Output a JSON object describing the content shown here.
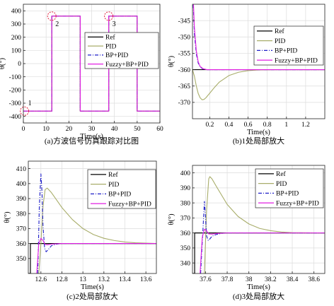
{
  "chart_data": [
    {
      "type": "line",
      "caption": "(a)方波信号仿真跟踪对比图",
      "xlabel": "Time(s)",
      "ylabel": "θ(°)",
      "xlim": [
        0,
        60
      ],
      "ylim": [
        -450,
        450
      ],
      "xticks": [
        0,
        10,
        20,
        30,
        40,
        50,
        60
      ],
      "yticks": [
        -400,
        -300,
        -200,
        -100,
        0,
        100,
        200,
        300,
        400
      ],
      "grid": true,
      "legend": "center-right",
      "annotations": [
        {
          "text": "1",
          "x": 0.5,
          "y": -360
        },
        {
          "text": "2",
          "x": 12.5,
          "y": 360
        },
        {
          "text": "3",
          "x": 37.5,
          "y": 360
        }
      ],
      "series": [
        {
          "name": "Ref",
          "color": "#000000",
          "dash": "solid",
          "x": [
            0,
            12.5,
            12.5,
            25,
            25,
            37.5,
            37.5,
            50,
            50,
            60
          ],
          "y": [
            -360,
            -360,
            360,
            360,
            -360,
            -360,
            360,
            360,
            -360,
            -360
          ]
        },
        {
          "name": "PID",
          "color": "#a8ad6a",
          "dash": "solid",
          "x": [
            0,
            12.5,
            12.5,
            25,
            25,
            37.5,
            37.5,
            50,
            50,
            60
          ],
          "y": [
            -360,
            -360,
            360,
            360,
            -360,
            -360,
            360,
            360,
            -360,
            -360
          ]
        },
        {
          "name": "BP+PID",
          "color": "#1f1fc8",
          "dash": "dashdot",
          "x": [
            0,
            12.5,
            12.5,
            25,
            25,
            37.5,
            37.5,
            50,
            50,
            60
          ],
          "y": [
            -360,
            -360,
            360,
            360,
            -360,
            -360,
            360,
            360,
            -360,
            -360
          ]
        },
        {
          "name": "Fuzzy+BP+PID",
          "color": "#e21fe2",
          "dash": "solid",
          "x": [
            0,
            12.5,
            12.5,
            25,
            25,
            37.5,
            37.5,
            50,
            50,
            60
          ],
          "y": [
            -360,
            -360,
            360,
            360,
            -360,
            -360,
            360,
            360,
            -360,
            -360
          ]
        }
      ]
    },
    {
      "type": "line",
      "caption": "(b)1处局部放大",
      "xlabel": "Time(s)",
      "ylabel": "θ(°)",
      "xlim": [
        0.02,
        1.4
      ],
      "ylim": [
        -375,
        -340
      ],
      "xticks": [
        0.2,
        0.4,
        0.6,
        0.8,
        1,
        1.2
      ],
      "yticks": [
        -370,
        -365,
        -360,
        -355,
        -350,
        -345
      ],
      "grid": true,
      "legend": "top-right",
      "series": [
        {
          "name": "Ref",
          "color": "#000000",
          "dash": "solid",
          "x": [
            0.02,
            1.4
          ],
          "y": [
            -360,
            -360
          ]
        },
        {
          "name": "PID",
          "color": "#a8ad6a",
          "dash": "solid",
          "x": [
            0.02,
            0.04,
            0.06,
            0.08,
            0.1,
            0.12,
            0.14,
            0.16,
            0.2,
            0.25,
            0.3,
            0.4,
            0.5,
            0.6,
            0.7,
            0.9,
            1.4
          ],
          "y": [
            -360,
            -362,
            -365,
            -367.3,
            -368.6,
            -369.2,
            -369.1,
            -368.6,
            -367.2,
            -365.4,
            -363.8,
            -361.8,
            -360.8,
            -360.3,
            -360.1,
            -360,
            -360
          ]
        },
        {
          "name": "BP+PID",
          "color": "#1f1fc8",
          "dash": "dashdot",
          "x": [
            0.025,
            0.04,
            0.06,
            0.08,
            0.1,
            0.13,
            0.17,
            0.25,
            0.4,
            1.4
          ],
          "y": [
            -338,
            -349,
            -355.2,
            -358,
            -359.2,
            -359.8,
            -360,
            -360,
            -360,
            -360
          ]
        },
        {
          "name": "Fuzzy+BP+PID",
          "color": "#e21fe2",
          "dash": "solid",
          "x": [
            0.028,
            0.04,
            0.06,
            0.08,
            0.1,
            0.13,
            0.17,
            0.25,
            1.4
          ],
          "y": [
            -338,
            -347,
            -354.2,
            -357.6,
            -359,
            -359.7,
            -360,
            -360,
            -360
          ]
        }
      ]
    },
    {
      "type": "line",
      "caption": "(c)2处局部放大",
      "xlabel": "Time(s)",
      "ylabel": "θ(°)",
      "xlim": [
        12.48,
        13.7
      ],
      "ylim": [
        340,
        415
      ],
      "xticks": [
        12.6,
        12.8,
        13,
        13.2,
        13.4,
        13.6
      ],
      "yticks": [
        350,
        360,
        370,
        380,
        390,
        400,
        410
      ],
      "grid": true,
      "legend": "center-right",
      "series": [
        {
          "name": "Ref",
          "color": "#000000",
          "dash": "solid",
          "x": [
            12.48,
            12.5,
            12.5,
            13.7
          ],
          "y": [
            340,
            340,
            360,
            360
          ]
        },
        {
          "name": "PID",
          "color": "#a8ad6a",
          "dash": "solid",
          "x": [
            12.58,
            12.6,
            12.62,
            12.64,
            12.66,
            12.7,
            12.75,
            12.8,
            12.9,
            13,
            13.1,
            13.2,
            13.3,
            13.4,
            13.5,
            13.7
          ],
          "y": [
            340,
            360,
            385,
            396,
            397,
            394,
            389,
            384,
            376,
            370,
            366,
            363.5,
            362,
            361,
            360.5,
            360
          ]
        },
        {
          "name": "BP+PID",
          "color": "#1f1fc8",
          "dash": "dashdot",
          "x": [
            12.57,
            12.585,
            12.6,
            12.61,
            12.62,
            12.635,
            12.65,
            12.67,
            12.7,
            12.75,
            12.8,
            12.9,
            13.7
          ],
          "y": [
            340,
            385,
            406.5,
            395,
            372,
            357,
            354.5,
            356,
            358.5,
            359.6,
            360,
            360,
            360
          ]
        },
        {
          "name": "Fuzzy+BP+PID",
          "color": "#e21fe2",
          "dash": "solid",
          "x": [
            12.56,
            12.58,
            12.6,
            12.62,
            12.64,
            12.66,
            12.7,
            12.8,
            13.7
          ],
          "y": [
            340,
            360,
            363.5,
            362,
            359.4,
            359.2,
            359.6,
            360,
            360
          ]
        }
      ]
    },
    {
      "type": "line",
      "caption": "(d)3处局部放大",
      "xlabel": "Time(s)",
      "ylabel": "θ(°)",
      "xlim": [
        37.48,
        38.7
      ],
      "ylim": [
        333,
        405
      ],
      "xticks": [
        37.6,
        37.8,
        38,
        38.2,
        38.4,
        38.6
      ],
      "yticks": [
        340,
        350,
        360,
        370,
        380,
        390,
        400
      ],
      "grid": true,
      "legend": "top-right",
      "series": [
        {
          "name": "Ref",
          "color": "#000000",
          "dash": "solid",
          "x": [
            37.48,
            37.5,
            37.5,
            38.7
          ],
          "y": [
            333,
            333,
            360,
            360
          ]
        },
        {
          "name": "PID",
          "color": "#a8ad6a",
          "dash": "solid",
          "x": [
            37.59,
            37.61,
            37.63,
            37.64,
            37.66,
            37.7,
            37.75,
            37.8,
            37.9,
            38,
            38.1,
            38.2,
            38.3,
            38.4,
            38.7
          ],
          "y": [
            333,
            375,
            396,
            397.5,
            396,
            391,
            385,
            379,
            371,
            366,
            363,
            361.5,
            360.6,
            360.2,
            360
          ]
        },
        {
          "name": "BP+PID",
          "color": "#1f1fc8",
          "dash": "dashdot",
          "x": [
            37.555,
            37.575,
            37.59,
            37.6,
            37.61,
            37.625,
            37.64,
            37.66,
            37.7,
            37.75,
            37.8,
            37.9,
            38.7
          ],
          "y": [
            333,
            360,
            381,
            371,
            358,
            355,
            356,
            357.8,
            359,
            359.7,
            360,
            360,
            360
          ]
        },
        {
          "name": "Fuzzy+BP+PID",
          "color": "#e21fe2",
          "dash": "solid",
          "x": [
            37.55,
            37.57,
            37.59,
            37.61,
            37.63,
            37.66,
            37.7,
            37.8,
            38.7
          ],
          "y": [
            333,
            357,
            362.5,
            361.5,
            359.3,
            359.2,
            359.6,
            360,
            360
          ]
        }
      ]
    }
  ]
}
